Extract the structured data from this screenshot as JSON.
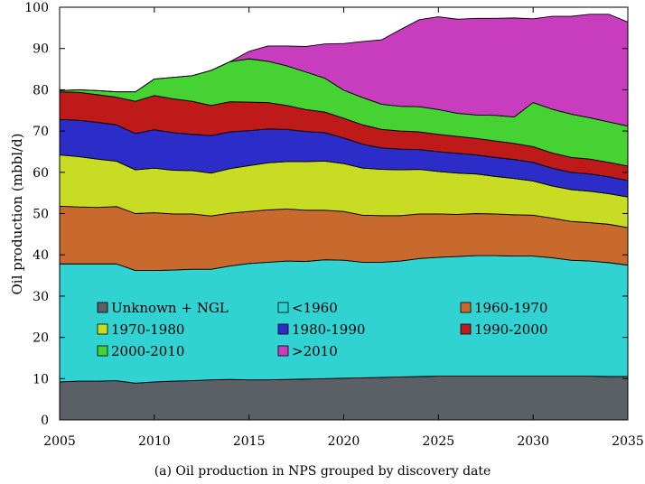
{
  "chart_data": {
    "type": "area",
    "stacked": true,
    "caption": "(a) Oil production in NPS grouped by discovery date",
    "xlabel": "",
    "ylabel": "Oil production (mbbl/d)",
    "xlim": [
      2005,
      2035
    ],
    "ylim": [
      0,
      100
    ],
    "xticks": [
      2005,
      2010,
      2015,
      2020,
      2025,
      2030,
      2035
    ],
    "yticks": [
      0,
      10,
      20,
      30,
      40,
      50,
      60,
      70,
      80,
      90,
      100
    ],
    "grid": false,
    "legend_position": "inside-lower",
    "x": [
      2005,
      2006,
      2007,
      2008,
      2009,
      2010,
      2011,
      2012,
      2013,
      2014,
      2015,
      2016,
      2017,
      2018,
      2019,
      2020,
      2021,
      2022,
      2023,
      2024,
      2025,
      2026,
      2027,
      2028,
      2029,
      2030,
      2031,
      2032,
      2033,
      2034,
      2035
    ],
    "series": [
      {
        "name": "Unknown + NGL",
        "color": "#5a6065",
        "values": [
          9.2,
          9.4,
          9.4,
          9.5,
          8.9,
          9.2,
          9.4,
          9.5,
          9.7,
          9.8,
          9.7,
          9.7,
          9.8,
          9.9,
          10.0,
          10.1,
          10.2,
          10.3,
          10.4,
          10.5,
          10.6,
          10.6,
          10.6,
          10.6,
          10.6,
          10.6,
          10.6,
          10.6,
          10.6,
          10.5,
          10.5
        ]
      },
      {
        "name": "<1960",
        "color": "#30d2d2",
        "values": [
          28.6,
          28.4,
          28.4,
          28.3,
          27.3,
          27.0,
          26.9,
          27.0,
          26.8,
          27.5,
          28.2,
          28.5,
          28.7,
          28.5,
          28.8,
          28.6,
          28.0,
          27.9,
          28.1,
          28.6,
          28.8,
          29.0,
          29.2,
          29.2,
          29.1,
          29.1,
          28.7,
          28.1,
          27.9,
          27.6,
          27.0
        ]
      },
      {
        "name": "1960-1970",
        "color": "#c8692d",
        "values": [
          14.0,
          13.8,
          13.7,
          13.9,
          13.8,
          14.0,
          13.6,
          13.4,
          12.9,
          12.8,
          12.6,
          12.7,
          12.6,
          12.4,
          12.0,
          11.8,
          11.4,
          11.3,
          11.0,
          10.8,
          10.5,
          10.2,
          10.2,
          10.1,
          10.0,
          9.9,
          9.6,
          9.4,
          9.3,
          9.3,
          9.1
        ]
      },
      {
        "name": "1970-1980",
        "color": "#c8dc23",
        "values": [
          12.4,
          12.2,
          11.7,
          11.0,
          10.6,
          10.8,
          10.6,
          10.5,
          10.4,
          10.8,
          11.1,
          11.4,
          11.5,
          11.8,
          11.9,
          11.6,
          11.4,
          11.2,
          11.1,
          10.8,
          10.3,
          10.0,
          9.6,
          9.1,
          8.8,
          8.3,
          7.8,
          7.7,
          7.6,
          7.4,
          7.4
        ]
      },
      {
        "name": "1980-1990",
        "color": "#2c2cc8",
        "values": [
          8.6,
          8.8,
          8.9,
          8.8,
          8.8,
          9.3,
          9.1,
          8.8,
          9.1,
          8.9,
          8.5,
          8.2,
          7.8,
          7.3,
          6.9,
          6.2,
          5.8,
          5.2,
          5.0,
          4.8,
          4.8,
          4.8,
          4.6,
          4.6,
          4.6,
          4.5,
          4.3,
          4.2,
          4.2,
          4.1,
          4.0
        ]
      },
      {
        "name": "1990-2000",
        "color": "#be1a1a",
        "values": [
          6.7,
          6.8,
          6.7,
          6.7,
          7.8,
          8.3,
          8.2,
          8.0,
          7.3,
          7.3,
          6.9,
          6.4,
          5.8,
          5.3,
          5.0,
          4.8,
          4.7,
          4.5,
          4.4,
          4.3,
          4.2,
          4.1,
          4.0,
          4.0,
          3.9,
          3.8,
          3.7,
          3.6,
          3.6,
          3.5,
          3.5
        ]
      },
      {
        "name": "2000-2010",
        "color": "#46d232",
        "values": [
          0.3,
          0.6,
          1.0,
          1.3,
          2.3,
          4.0,
          5.2,
          6.2,
          8.5,
          9.7,
          10.5,
          10.0,
          9.6,
          9.1,
          8.2,
          6.8,
          6.6,
          6.1,
          6.0,
          6.1,
          6.0,
          5.6,
          5.7,
          6.2,
          6.4,
          10.7,
          10.6,
          10.5,
          10.0,
          9.8,
          9.7
        ]
      },
      {
        "name": ">2010",
        "color": "#c83cbe",
        "values": [
          0,
          0,
          0,
          0,
          0,
          0,
          0,
          0,
          0,
          0,
          1.8,
          3.7,
          4.8,
          6.2,
          8.3,
          11.3,
          13.6,
          15.6,
          18.6,
          21.1,
          22.5,
          22.8,
          23.4,
          23.5,
          24.0,
          20.3,
          22.5,
          23.7,
          25.1,
          26.1,
          25.2
        ]
      }
    ]
  }
}
